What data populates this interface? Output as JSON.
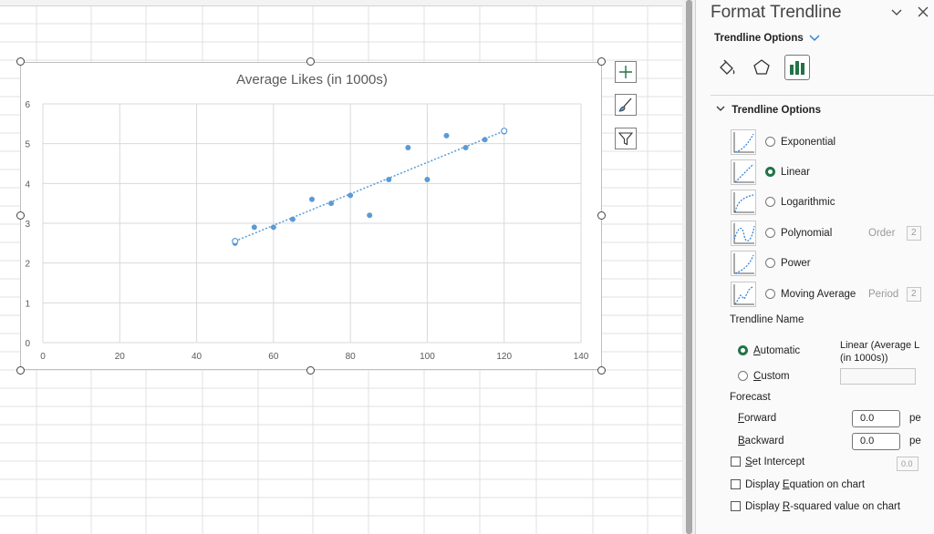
{
  "pane": {
    "title": "Format Trendline",
    "options_dropdown": "Trendline Options",
    "section_header": "Trendline Options",
    "trend_types": [
      {
        "label": "Exponential",
        "selected": false
      },
      {
        "label": "Linear",
        "selected": true
      },
      {
        "label": "Logarithmic",
        "selected": false
      },
      {
        "label": "Polynomial",
        "selected": false,
        "extra_label": "Order",
        "extra_value": "2"
      },
      {
        "label": "Power",
        "selected": false
      },
      {
        "label": "Moving Average",
        "selected": false,
        "extra_label": "Period",
        "extra_value": "2"
      }
    ],
    "trendline_name_label": "Trendline Name",
    "automatic_label": "Automatic",
    "automatic_selected": true,
    "automatic_value": "Linear (Average L\n(in 1000s))",
    "custom_label": "Custom",
    "forecast_label": "Forecast",
    "forward_label": "Forward",
    "forward_value": "0.0",
    "forward_unit": "pe",
    "backward_label": "Backward",
    "backward_value": "0.0",
    "backward_unit": "pe",
    "set_intercept_label": "Set Intercept",
    "set_intercept_value": "0.0",
    "display_equation_label": "Display Equation on chart",
    "display_rsquared_label": "Display R-squared value on chart",
    "accent_color": "#217346"
  },
  "chart_data": {
    "type": "scatter",
    "title": "Average Likes (in 1000s)",
    "xlim": [
      0,
      140
    ],
    "ylim": [
      0,
      6
    ],
    "x_ticks": [
      "0",
      "20",
      "40",
      "60",
      "80",
      "100",
      "120",
      "140"
    ],
    "y_ticks": [
      "0",
      "1",
      "2",
      "3",
      "4",
      "5",
      "6"
    ],
    "grid": true,
    "marker_color": "#5b9bd5",
    "series": [
      {
        "points": [
          [
            50,
            2.5
          ],
          [
            55,
            2.9
          ],
          [
            60,
            2.9
          ],
          [
            65,
            3.1
          ],
          [
            70,
            3.6
          ],
          [
            75,
            3.5
          ],
          [
            80,
            3.7
          ],
          [
            85,
            3.2
          ],
          [
            90,
            4.1
          ],
          [
            95,
            4.9
          ],
          [
            100,
            4.1
          ],
          [
            105,
            5.2
          ],
          [
            110,
            4.9
          ],
          [
            115,
            5.1
          ],
          [
            120,
            5.3
          ]
        ]
      }
    ],
    "trendline": {
      "type": "linear",
      "from": [
        50,
        2.55
      ],
      "to": [
        120,
        5.32
      ]
    }
  }
}
